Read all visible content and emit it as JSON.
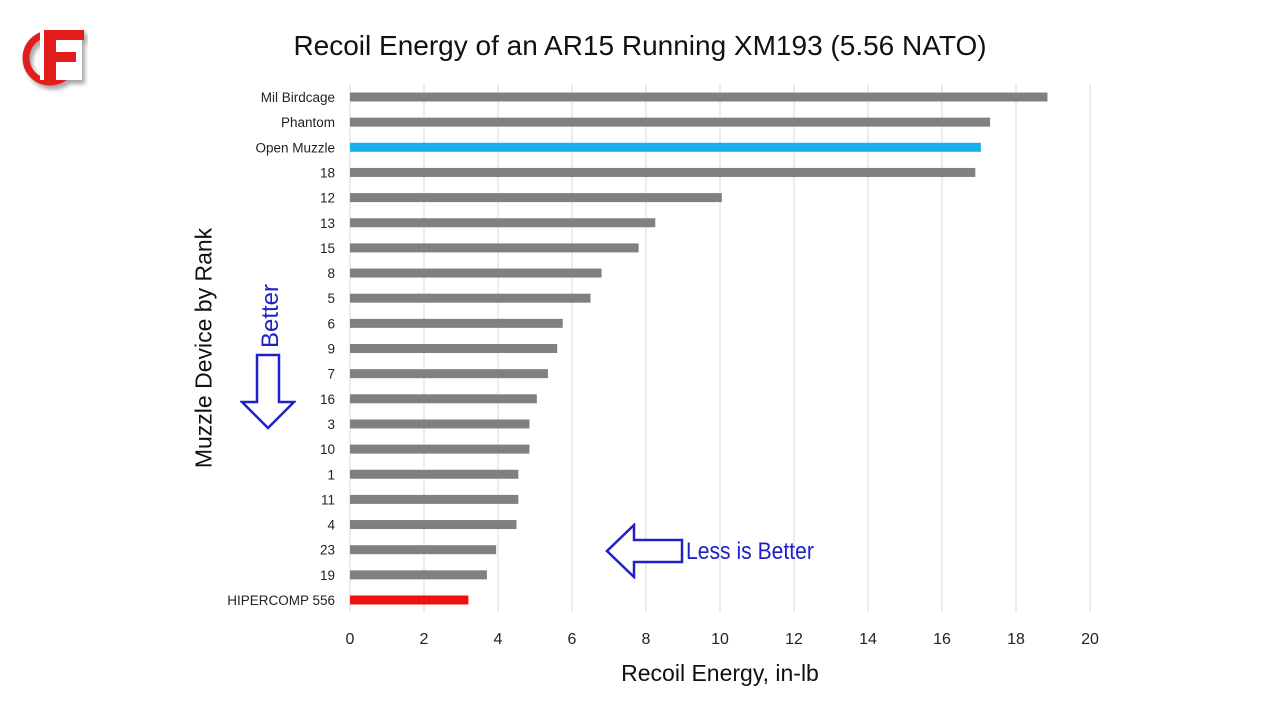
{
  "chart_data": {
    "type": "bar",
    "orientation": "horizontal",
    "title": "Recoil Energy of an AR15 Running XM193 (5.56 NATO)",
    "xlabel": "Recoil Energy, in-lb",
    "ylabel": "Muzzle Device by Rank",
    "xlim": [
      0,
      20
    ],
    "xticks": [
      0,
      2,
      4,
      6,
      8,
      10,
      12,
      14,
      16,
      18,
      20
    ],
    "grid": "vertical",
    "categories": [
      "Mil Birdcage",
      "Phantom",
      "Open Muzzle",
      "18",
      "12",
      "13",
      "15",
      "8",
      "5",
      "6",
      "9",
      "7",
      "16",
      "3",
      "10",
      "1",
      "11",
      "4",
      "23",
      "19",
      "HIPERCOMP 556"
    ],
    "values": [
      18.85,
      17.3,
      17.05,
      16.9,
      10.05,
      8.25,
      7.8,
      6.8,
      6.5,
      5.75,
      5.6,
      5.35,
      5.05,
      4.85,
      4.85,
      4.55,
      4.55,
      4.5,
      3.95,
      3.7,
      3.2
    ],
    "colors": {
      "default": "#808080",
      "Open Muzzle": "#1ab0f0",
      "HIPERCOMP 556": "#f01010"
    },
    "annotations": [
      "Better",
      "Less is Better"
    ]
  },
  "logo": {
    "icon": "red-circle-f-logo",
    "color": "#e31b1b"
  },
  "annotation_color": "#2020c8"
}
